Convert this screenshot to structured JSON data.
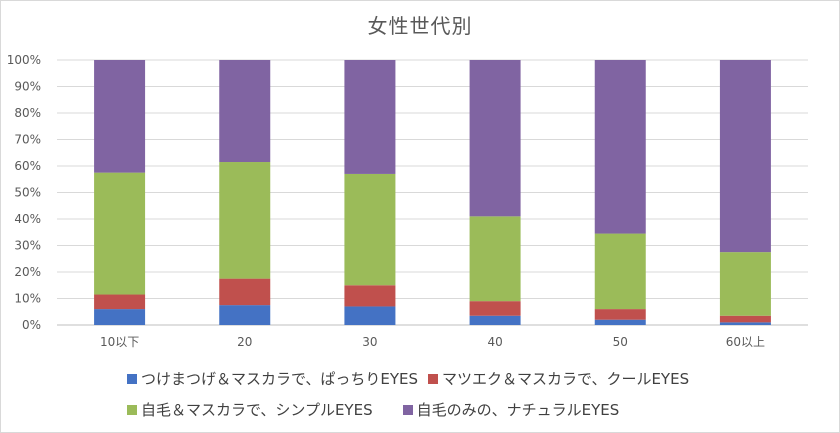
{
  "chart_data": {
    "type": "bar",
    "stacked": true,
    "title": "女性世代別",
    "categories": [
      "10以下",
      "20",
      "30",
      "40",
      "50",
      "60以上"
    ],
    "ylim": [
      0,
      100
    ],
    "yticks": [
      "0%",
      "10%",
      "20%",
      "30%",
      "40%",
      "50%",
      "60%",
      "70%",
      "80%",
      "90%",
      "100%"
    ],
    "grid": true,
    "legend_position": "bottom",
    "series": [
      {
        "name": "つけまつげ＆マスカラで、ぱっちりEYES",
        "color": "#4472c4",
        "values": [
          6,
          7.5,
          7,
          3.5,
          2,
          1
        ]
      },
      {
        "name": "マツエク＆マスカラで、クールEYES",
        "color": "#c0504d",
        "values": [
          5.5,
          10,
          8,
          5.5,
          4,
          2.5
        ]
      },
      {
        "name": "自毛＆マスカラで、シンプルEYES",
        "color": "#9bbb59",
        "values": [
          46,
          44,
          42,
          32,
          28.5,
          24
        ]
      },
      {
        "name": "自毛のみの、ナチュラルEYES",
        "color": "#8064a2",
        "values": [
          42.5,
          38.5,
          43,
          59,
          65.5,
          72.5
        ]
      }
    ]
  }
}
